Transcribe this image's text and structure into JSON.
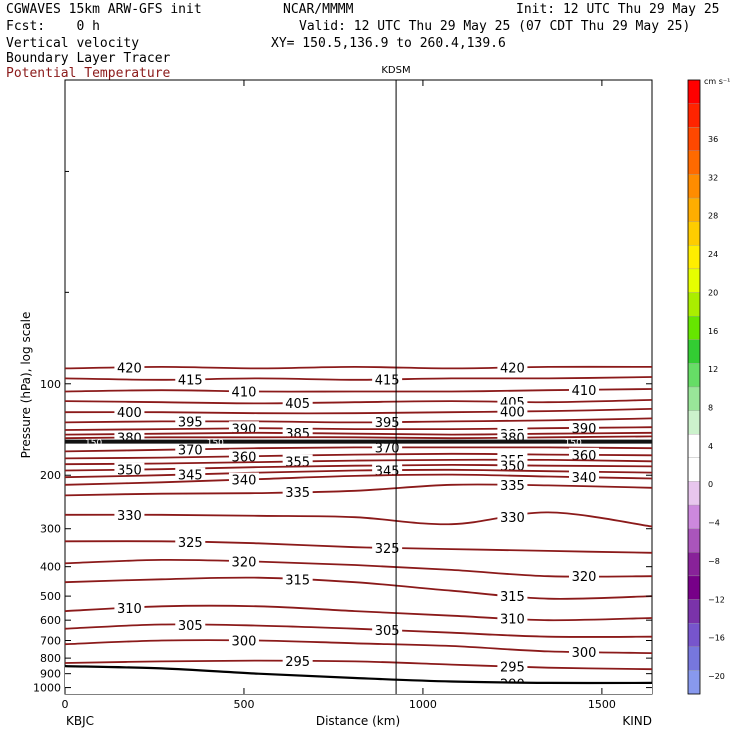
{
  "header": {
    "model": "CGWAVES 15km ARW-GFS init",
    "org": "NCAR/MMMM",
    "init": "Init: 12 UTC Thu 29 May 25",
    "fcst": "Fcst:    0 h",
    "valid": "Valid: 12 UTC Thu 29 May 25 (07 CDT Thu 29 May 25)",
    "fields": [
      "Vertical velocity",
      "Boundary Layer Tracer",
      "Potential Temperature"
    ],
    "xy": "XY= 150.5,136.9 to 260.4,139.6"
  },
  "colors": {
    "theta": "#8b1a1a",
    "terrain": "#000000",
    "frame": "#000000"
  },
  "chart_data": {
    "type": "line",
    "title": "",
    "xlabel": "Distance (km)",
    "ylabel": "Pressure (hPa), log scale",
    "y_scale": "log",
    "xlim": [
      0,
      1640
    ],
    "ylim_hpa": [
      1050,
      10
    ],
    "x_ticks": [
      0,
      500,
      1000,
      1500
    ],
    "x_tick_labels": [
      "0",
      "500",
      "1000",
      "1500"
    ],
    "y_ticks": [
      100,
      200,
      300,
      400,
      500,
      600,
      700,
      800,
      900,
      1000
    ],
    "y_tick_labels": [
      "100",
      "200",
      "300",
      "400",
      "500",
      "600",
      "700",
      "800",
      "900",
      "1000"
    ],
    "endpoints": {
      "left": "KBJC",
      "right": "KIND"
    },
    "marker": {
      "label": "KDSM",
      "x": 925
    },
    "colorbar": {
      "unit": "cm s⁻¹",
      "labels": [
        "36",
        "32",
        "28",
        "24",
        "20",
        "16",
        "12",
        "8",
        "4",
        "0",
        "−4",
        "−8",
        "−12",
        "−16",
        "−20"
      ],
      "colors": [
        "#ff0000",
        "#ff2400",
        "#ff4800",
        "#ff6a00",
        "#ff8c00",
        "#ffad00",
        "#ffcc00",
        "#ffee00",
        "#e6ff00",
        "#aaee00",
        "#66e600",
        "#33cc33",
        "#66dd66",
        "#99e699",
        "#ccf2cc",
        "#ffffff",
        "#ffffff",
        "#e8c6ee",
        "#cc88dd",
        "#aa55bb",
        "#882299",
        "#770088",
        "#7a33aa",
        "#7755cc",
        "#7777dd",
        "#8899ee"
      ]
    },
    "tropopause": {
      "label": "150",
      "p": 155
    },
    "series": [
      {
        "name": "420",
        "p": [
          89,
          88,
          89,
          88,
          89,
          88,
          88
        ]
      },
      {
        "name": "415",
        "p": [
          96,
          97,
          96,
          97,
          96,
          96,
          95
        ]
      },
      {
        "name": "410",
        "p": [
          106,
          105,
          106,
          106,
          106,
          105,
          104
        ]
      },
      {
        "name": "405",
        "p": [
          114,
          115,
          116,
          115,
          114,
          115,
          113
        ]
      },
      {
        "name": "400",
        "p": [
          124,
          124,
          125,
          125,
          124,
          123,
          121
        ]
      },
      {
        "name": "395",
        "p": [
          134,
          133,
          133,
          134,
          133,
          132,
          130
        ]
      },
      {
        "name": "390",
        "p": [
          142,
          141,
          140,
          141,
          141,
          140,
          139
        ]
      },
      {
        "name": "385",
        "p": [
          147,
          146,
          145,
          146,
          147,
          146,
          145
        ]
      },
      {
        "name": "380",
        "p": [
          151,
          150,
          150,
          150,
          151,
          150,
          149
        ]
      },
      {
        "name": "370",
        "p": [
          167,
          165,
          163,
          162,
          162,
          162,
          163
        ]
      },
      {
        "name": "360",
        "p": [
          176,
          175,
          173,
          171,
          170,
          171,
          172
        ]
      },
      {
        "name": "355",
        "p": [
          184,
          183,
          181,
          179,
          178,
          178,
          180
        ]
      },
      {
        "name": "350",
        "p": [
          193,
          191,
          188,
          186,
          185,
          186,
          187
        ]
      },
      {
        "name": "345",
        "p": [
          203,
          200,
          196,
          193,
          192,
          194,
          196
        ]
      },
      {
        "name": "340",
        "p": [
          215,
          211,
          206,
          201,
          199,
          202,
          205
        ]
      },
      {
        "name": "335",
        "p": [
          233,
          230,
          229,
          225,
          215,
          216,
          220
        ]
      },
      {
        "name": "330",
        "p": [
          270,
          270,
          272,
          275,
          290,
          265,
          295
        ]
      },
      {
        "name": "325",
        "p": [
          330,
          330,
          335,
          345,
          350,
          355,
          360
        ]
      },
      {
        "name": "320",
        "p": [
          390,
          380,
          385,
          395,
          410,
          430,
          430
        ]
      },
      {
        "name": "315",
        "p": [
          450,
          440,
          435,
          450,
          480,
          510,
          500
        ]
      },
      {
        "name": "310",
        "p": [
          560,
          540,
          540,
          560,
          580,
          600,
          590
        ]
      },
      {
        "name": "305",
        "p": [
          640,
          620,
          625,
          640,
          660,
          680,
          680
        ]
      },
      {
        "name": "300",
        "p": [
          720,
          700,
          700,
          715,
          730,
          760,
          770
        ]
      },
      {
        "name": "295",
        "p": [
          830,
          820,
          815,
          820,
          840,
          860,
          870
        ]
      },
      {
        "name": "290",
        "p": [
          930,
          930,
          935,
          940,
          960,
          975,
          975
        ]
      }
    ],
    "x_nodes": [
      0,
      270,
      540,
      810,
      1080,
      1350,
      1640
    ],
    "terrain_p": [
      850,
      865,
      900,
      930,
      955,
      965,
      965
    ]
  }
}
